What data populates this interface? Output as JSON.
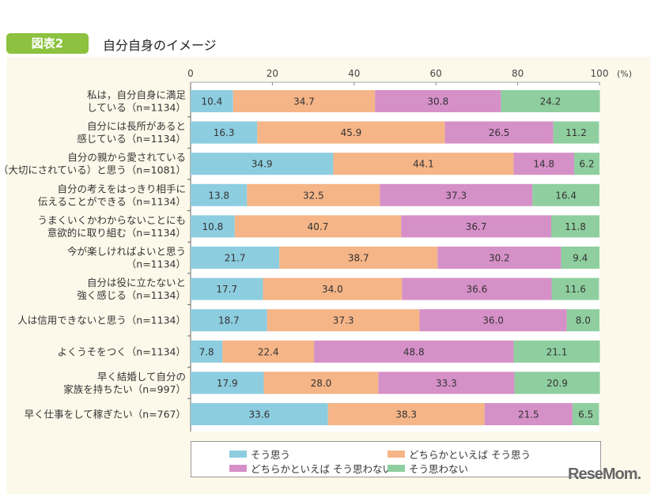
{
  "header": {
    "badge": "図表2",
    "title": "自分自身のイメージ"
  },
  "logo": "ReseMom",
  "chart_data": {
    "type": "bar",
    "orientation": "horizontal-stacked-100",
    "xlim": [
      0,
      100
    ],
    "xticks": [
      "0",
      "20",
      "40",
      "60",
      "80",
      "100"
    ],
    "unit_label": "(%)",
    "colors": [
      "#8dcde0",
      "#f5b587",
      "#d690c8",
      "#8fcf9f"
    ],
    "categories": [
      [
        "私は，自分自身に満足",
        "している（n=1134）"
      ],
      [
        "自分には長所があると",
        "感じている（n=1134）"
      ],
      [
        "自分の親から愛されている",
        "（大切にされている）と思う（n=1081）"
      ],
      [
        "自分の考えをはっきり相手に",
        "伝えることができる（n=1134）"
      ],
      [
        "うまくいくかわからないことにも",
        "意欲的に取り組む（n=1134）"
      ],
      [
        "今が楽しければよいと思う",
        "（n=1134）"
      ],
      [
        "自分は役に立たないと",
        "強く感じる（n=1134）"
      ],
      [
        "人は信用できないと思う（n=1134）"
      ],
      [
        "よくうそをつく（n=1134）"
      ],
      [
        "早く結婚して自分の",
        "家族を持ちたい（n=997）"
      ],
      [
        "早く仕事をして稼ぎたい（n=767）"
      ]
    ],
    "series": [
      {
        "name": "そう思う",
        "values": [
          10.4,
          16.3,
          34.9,
          13.8,
          10.8,
          21.7,
          17.7,
          18.7,
          7.8,
          17.9,
          33.6
        ]
      },
      {
        "name": "どちらかといえば そう思う",
        "values": [
          34.7,
          45.9,
          44.1,
          32.5,
          40.7,
          38.7,
          34.0,
          37.3,
          22.4,
          28.0,
          38.3
        ]
      },
      {
        "name": "どちらかといえば そう思わない",
        "values": [
          30.8,
          26.5,
          14.8,
          37.3,
          36.7,
          30.2,
          36.6,
          36.0,
          48.8,
          33.3,
          21.5
        ]
      },
      {
        "name": "そう思わない",
        "values": [
          24.2,
          11.2,
          6.2,
          16.4,
          11.8,
          9.4,
          11.6,
          8.0,
          21.1,
          20.9,
          6.5
        ]
      }
    ],
    "legend_placement": "bottom"
  }
}
